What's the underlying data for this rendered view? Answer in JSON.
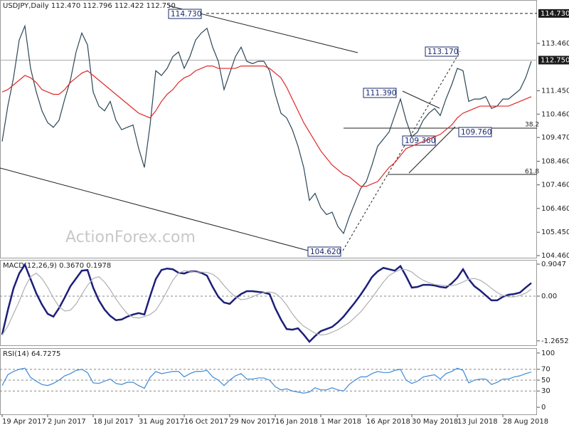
{
  "chart_data": [
    {
      "type": "line",
      "title": "USDJPY,Daily  112.470 112.796 112.422 112.750",
      "watermark": "ActionForex.com",
      "ylim": [
        104.37,
        115.3
      ],
      "yticks": [
        {
          "value": 113.46,
          "label": "113.460"
        },
        {
          "value": 111.45,
          "label": "111.450"
        },
        {
          "value": 110.46,
          "label": "110.460"
        },
        {
          "value": 109.47,
          "label": "109.470"
        },
        {
          "value": 108.46,
          "label": "108.460"
        },
        {
          "value": 107.46,
          "label": "107.460"
        },
        {
          "value": 106.46,
          "label": "106.460"
        },
        {
          "value": 105.45,
          "label": "105.450"
        },
        {
          "value": 104.46,
          "label": "104.460"
        }
      ],
      "price_markers": [
        {
          "value": 114.73,
          "label": "114.730"
        },
        {
          "value": 112.75,
          "label": "112.750"
        }
      ],
      "annotations": [
        "114.730",
        "113.170",
        "111.390",
        "109.360",
        "109.760",
        "104.620",
        "38.2",
        "61.8"
      ],
      "series": [
        {
          "color": "#2c4656",
          "values": [
            109.3,
            110.8,
            112.0,
            113.6,
            114.2,
            112.4,
            111.4,
            110.6,
            110.1,
            109.9,
            110.2,
            111.1,
            111.9,
            113.1,
            113.9,
            113.4,
            111.4,
            110.8,
            110.6,
            111.0,
            110.2,
            109.8,
            109.9,
            110.0,
            109.0,
            108.2,
            110.0,
            112.3,
            112.1,
            112.4,
            112.9,
            113.1,
            112.4,
            112.9,
            113.6,
            113.9,
            114.1,
            113.3,
            112.7,
            111.5,
            112.2,
            112.9,
            113.3,
            112.7,
            112.6,
            112.7,
            112.7,
            112.3,
            111.3,
            110.5,
            110.3,
            109.8,
            109.1,
            108.2,
            106.8,
            107.1,
            106.5,
            106.2,
            106.3,
            105.7,
            105.4,
            106.1,
            106.7,
            107.3,
            107.6,
            108.3,
            109.1,
            109.4,
            109.7,
            110.4,
            111.1,
            110.2,
            109.5,
            109.7,
            110.2,
            110.5,
            110.7,
            110.4,
            111.1,
            111.7,
            112.4,
            112.3,
            111.0,
            111.1,
            111.1,
            111.2,
            110.7,
            110.8,
            111.1,
            111.1,
            111.3,
            111.5,
            112.0,
            112.7
          ]
        },
        {
          "color": "#e02828",
          "values": [
            111.4,
            111.5,
            111.7,
            111.9,
            112.1,
            112.0,
            111.8,
            111.5,
            111.4,
            111.3,
            111.3,
            111.5,
            111.8,
            112.0,
            112.2,
            112.3,
            112.1,
            111.9,
            111.7,
            111.5,
            111.3,
            111.1,
            110.9,
            110.7,
            110.5,
            110.4,
            110.3,
            110.6,
            111.0,
            111.3,
            111.5,
            111.8,
            112.0,
            112.1,
            112.3,
            112.4,
            112.5,
            112.5,
            112.4,
            112.4,
            112.4,
            112.4,
            112.5,
            112.5,
            112.5,
            112.5,
            112.5,
            112.4,
            112.2,
            112.0,
            111.6,
            111.1,
            110.6,
            110.1,
            109.7,
            109.3,
            108.9,
            108.6,
            108.3,
            108.1,
            107.9,
            107.8,
            107.6,
            107.4,
            107.4,
            107.5,
            107.6,
            107.9,
            108.2,
            108.4,
            108.7,
            109.0,
            109.1,
            109.2,
            109.3,
            109.4,
            109.5,
            109.6,
            109.8,
            110.0,
            110.3,
            110.5,
            110.6,
            110.7,
            110.8,
            110.8,
            110.8,
            110.8,
            110.8,
            110.8,
            110.9,
            111.0,
            111.1,
            111.2
          ]
        }
      ]
    },
    {
      "type": "line",
      "title": "MACD(12,26,9) 0.3670 0.1978",
      "ylim": [
        -1.39,
        1.026
      ],
      "yticks": [
        0.9047,
        {
          "value": 0,
          "label": "0.00"
        },
        -1.2652
      ],
      "series": [
        {
          "color": "#1c1f7a",
          "values": [
            -1.09,
            -0.4,
            0.22,
            0.64,
            0.89,
            0.48,
            0.08,
            -0.24,
            -0.5,
            -0.58,
            -0.34,
            -0.04,
            0.28,
            0.5,
            0.72,
            0.74,
            0.24,
            -0.12,
            -0.38,
            -0.56,
            -0.68,
            -0.66,
            -0.58,
            -0.52,
            -0.48,
            -0.52,
            0.0,
            0.48,
            0.74,
            0.78,
            0.76,
            0.66,
            0.64,
            0.7,
            0.7,
            0.66,
            0.58,
            0.26,
            -0.02,
            -0.18,
            -0.22,
            -0.06,
            0.06,
            0.14,
            0.14,
            0.12,
            0.1,
            0.06,
            -0.34,
            -0.66,
            -0.93,
            -0.95,
            -0.91,
            -1.09,
            -1.29,
            -1.13,
            -0.99,
            -0.93,
            -0.87,
            -0.74,
            -0.58,
            -0.38,
            -0.18,
            0.04,
            0.28,
            0.54,
            0.7,
            0.8,
            0.76,
            0.72,
            0.85,
            0.56,
            0.24,
            0.26,
            0.32,
            0.32,
            0.3,
            0.26,
            0.24,
            0.36,
            0.52,
            0.76,
            0.48,
            0.28,
            0.16,
            0.02,
            -0.12,
            -0.12,
            -0.02,
            0.04,
            0.06,
            0.1,
            0.24,
            0.37
          ]
        },
        {
          "color": "#b0b0b0",
          "values": [
            -1.1,
            -0.85,
            -0.5,
            -0.15,
            0.25,
            0.55,
            0.65,
            0.5,
            0.25,
            -0.05,
            -0.3,
            -0.42,
            -0.4,
            -0.22,
            0.05,
            0.3,
            0.5,
            0.55,
            0.4,
            0.18,
            -0.08,
            -0.3,
            -0.5,
            -0.6,
            -0.62,
            -0.58,
            -0.52,
            -0.4,
            -0.15,
            0.15,
            0.45,
            0.65,
            0.72,
            0.7,
            0.68,
            0.68,
            0.67,
            0.62,
            0.5,
            0.3,
            0.12,
            -0.02,
            -0.1,
            -0.08,
            -0.02,
            0.05,
            0.1,
            0.12,
            0.08,
            -0.05,
            -0.25,
            -0.5,
            -0.7,
            -0.85,
            -0.95,
            -1.05,
            -1.1,
            -1.08,
            -1.02,
            -0.95,
            -0.85,
            -0.75,
            -0.6,
            -0.45,
            -0.25,
            -0.05,
            0.18,
            0.4,
            0.58,
            0.68,
            0.75,
            0.75,
            0.68,
            0.55,
            0.45,
            0.38,
            0.33,
            0.31,
            0.3,
            0.3,
            0.33,
            0.4,
            0.48,
            0.5,
            0.45,
            0.35,
            0.22,
            0.1,
            0.02,
            -0.02,
            -0.02,
            0.02,
            0.08,
            0.2
          ]
        }
      ]
    },
    {
      "type": "line",
      "title": "RSI(14) 64.7275",
      "ylim": [
        -13,
        109
      ],
      "yticks": [
        100,
        70,
        50,
        30,
        0
      ],
      "categories": [
        "19 Apr 2017",
        null,
        null,
        null,
        null,
        null,
        null,
        null,
        "2 Jun 2017",
        null,
        null,
        null,
        null,
        null,
        null,
        null,
        "18 Jul 2017",
        null,
        null,
        null,
        null,
        null,
        null,
        null,
        "31 Aug 2017",
        null,
        null,
        null,
        null,
        null,
        null,
        null,
        "16 Oct 2017",
        null,
        null,
        null,
        null,
        null,
        null,
        null,
        "29 Nov 2017",
        null,
        null,
        null,
        null,
        null,
        null,
        null,
        "16 Jan 2018",
        null,
        null,
        null,
        null,
        null,
        null,
        null,
        "1 Mar 2018",
        null,
        null,
        null,
        null,
        null,
        null,
        null,
        "16 Apr 2018",
        null,
        null,
        null,
        null,
        null,
        null,
        null,
        "30 May 2018",
        null,
        null,
        null,
        null,
        null,
        null,
        null,
        "13 Jul 2018",
        null,
        null,
        null,
        null,
        null,
        null,
        null,
        "28 Aug 2018",
        null,
        null,
        null,
        null,
        null
      ],
      "series": [
        {
          "color": "#3f8ad6",
          "values": [
            40,
            60,
            66,
            70,
            72,
            55,
            48,
            42,
            40,
            44,
            50,
            58,
            62,
            68,
            70,
            64,
            45,
            44,
            48,
            52,
            44,
            42,
            46,
            46,
            40,
            35,
            55,
            66,
            62,
            64,
            66,
            66,
            56,
            62,
            66,
            66,
            68,
            56,
            50,
            40,
            50,
            58,
            62,
            52,
            52,
            54,
            54,
            50,
            38,
            32,
            34,
            30,
            28,
            26,
            28,
            36,
            32,
            32,
            36,
            32,
            30,
            42,
            50,
            56,
            56,
            62,
            66,
            64,
            64,
            68,
            70,
            50,
            44,
            48,
            56,
            58,
            60,
            52,
            62,
            66,
            72,
            68,
            45,
            50,
            52,
            52,
            42,
            46,
            52,
            52,
            56,
            58,
            62,
            65
          ]
        }
      ]
    }
  ]
}
